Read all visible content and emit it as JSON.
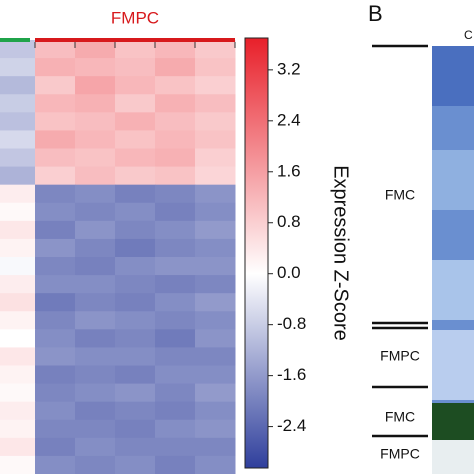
{
  "chart_data": {
    "type": "heatmap",
    "group_label": "FMPC",
    "group_colors": [
      "#1fa34a",
      "#d7191c"
    ],
    "colorbar_label": "Expression Z-Score",
    "colors": {
      "low": "#2f3f9c",
      "mid": "#ffffff",
      "high": "#e8202a"
    },
    "zlim": [
      -3.05,
      3.7
    ],
    "zticks": [
      3.2,
      2.4,
      1.6,
      0.8,
      {
        "value": 0,
        "label": "0.0"
      },
      -0.8,
      -1.6,
      -2.4
    ],
    "z": [
      [
        -0.9,
        1.1,
        1.4,
        1.0,
        1.2,
        0.9
      ],
      [
        -0.7,
        1.3,
        1.2,
        1.1,
        1.4,
        1.0
      ],
      [
        -1.1,
        0.9,
        1.5,
        1.2,
        1.0,
        0.8
      ],
      [
        -0.8,
        1.2,
        1.3,
        0.9,
        1.3,
        1.1
      ],
      [
        -1.0,
        1.0,
        1.1,
        1.3,
        1.1,
        0.9
      ],
      [
        -0.6,
        1.4,
        1.2,
        1.0,
        1.2,
        1.0
      ],
      [
        -0.9,
        1.1,
        1.0,
        1.2,
        1.3,
        0.8
      ],
      [
        -1.2,
        0.8,
        1.1,
        0.9,
        1.0,
        0.7
      ],
      [
        0.3,
        -1.9,
        -1.8,
        -2.0,
        -1.9,
        -1.7
      ],
      [
        0.1,
        -1.8,
        -1.9,
        -1.8,
        -2.0,
        -1.8
      ],
      [
        0.4,
        -2.0,
        -1.7,
        -1.9,
        -1.8,
        -1.6
      ],
      [
        0.2,
        -1.7,
        -1.9,
        -2.1,
        -1.9,
        -1.8
      ],
      [
        -0.1,
        -1.9,
        -2.0,
        -1.8,
        -1.7,
        -1.7
      ],
      [
        0.3,
        -1.8,
        -1.8,
        -1.9,
        -2.0,
        -1.9
      ],
      [
        0.5,
        -2.1,
        -1.9,
        -2.0,
        -1.8,
        -1.6
      ],
      [
        0.2,
        -1.9,
        -1.7,
        -1.8,
        -1.9,
        -1.8
      ],
      [
        0.0,
        -1.8,
        -2.0,
        -1.9,
        -2.1,
        -1.7
      ],
      [
        0.4,
        -1.7,
        -1.8,
        -1.8,
        -1.9,
        -1.9
      ],
      [
        0.2,
        -2.0,
        -1.9,
        -2.0,
        -1.8,
        -1.8
      ],
      [
        0.1,
        -1.9,
        -1.8,
        -1.7,
        -1.9,
        -1.6
      ],
      [
        0.3,
        -1.8,
        -2.0,
        -1.9,
        -2.0,
        -1.8
      ],
      [
        0.2,
        -1.9,
        -1.9,
        -2.0,
        -1.8,
        -1.7
      ],
      [
        0.4,
        -2.0,
        -1.8,
        -1.9,
        -1.9,
        -1.9
      ],
      [
        0.1,
        -1.8,
        -1.9,
        -1.8,
        -2.0,
        -1.8
      ]
    ]
  },
  "panel_b": {
    "label": "B",
    "partial_header": "C",
    "rows": [
      "FMC",
      "FMPC",
      "FMC",
      "FMPC"
    ]
  }
}
